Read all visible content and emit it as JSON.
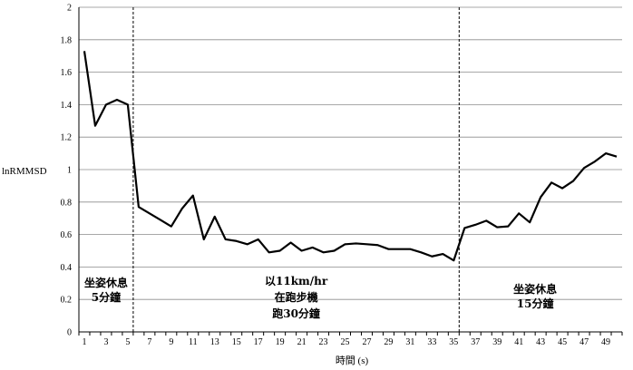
{
  "chart_data": {
    "type": "line",
    "xlabel": "時間 (s)",
    "ylabel": "lnRMMSD",
    "ylim": [
      0,
      2
    ],
    "yticks": [
      "0",
      "0.2",
      "0.4",
      "0.6",
      "0.8",
      "1",
      "1.2",
      "1.4",
      "1.6",
      "1.8",
      "2"
    ],
    "xticks": [
      "1",
      "3",
      "5",
      "7",
      "9",
      "11",
      "13",
      "15",
      "17",
      "19",
      "21",
      "23",
      "25",
      "27",
      "29",
      "31",
      "33",
      "35",
      "37",
      "39",
      "41",
      "43",
      "45",
      "47",
      "49"
    ],
    "grid": true,
    "line_color": "#000000",
    "x": [
      1,
      2,
      3,
      4,
      5,
      6,
      7,
      8,
      9,
      10,
      11,
      12,
      13,
      14,
      15,
      16,
      17,
      18,
      19,
      20,
      21,
      22,
      23,
      24,
      25,
      26,
      27,
      28,
      29,
      30,
      31,
      32,
      33,
      34,
      35,
      36,
      37,
      38,
      39,
      40,
      41,
      42,
      43,
      44,
      45,
      46,
      47,
      48,
      49,
      50
    ],
    "values": [
      1.73,
      1.27,
      1.4,
      1.43,
      1.4,
      0.77,
      0.73,
      0.69,
      0.65,
      0.76,
      0.84,
      0.57,
      0.71,
      0.57,
      0.56,
      0.54,
      0.57,
      0.49,
      0.5,
      0.55,
      0.5,
      0.52,
      0.49,
      0.5,
      0.54,
      0.545,
      0.54,
      0.535,
      0.51,
      0.51,
      0.51,
      0.49,
      0.465,
      0.48,
      0.44,
      0.64,
      0.66,
      0.685,
      0.645,
      0.65,
      0.73,
      0.675,
      0.83,
      0.92,
      0.885,
      0.93,
      1.01,
      1.05,
      1.1,
      1.08
    ],
    "phase_dividers": [
      5.5,
      35.5
    ],
    "annotations": [
      {
        "lines": [
          "坐姿休息",
          "5分鐘"
        ],
        "x": 3,
        "y": [
          0.28,
          0.19
        ]
      },
      {
        "lines": [
          "以11km/hr",
          "在跑步機",
          "跑30分鐘"
        ],
        "x": 20.5,
        "y": [
          0.29,
          0.19,
          0.09
        ]
      },
      {
        "lines": [
          "坐姿休息",
          "15分鐘"
        ],
        "x": 42.5,
        "y": [
          0.24,
          0.15
        ]
      }
    ]
  }
}
